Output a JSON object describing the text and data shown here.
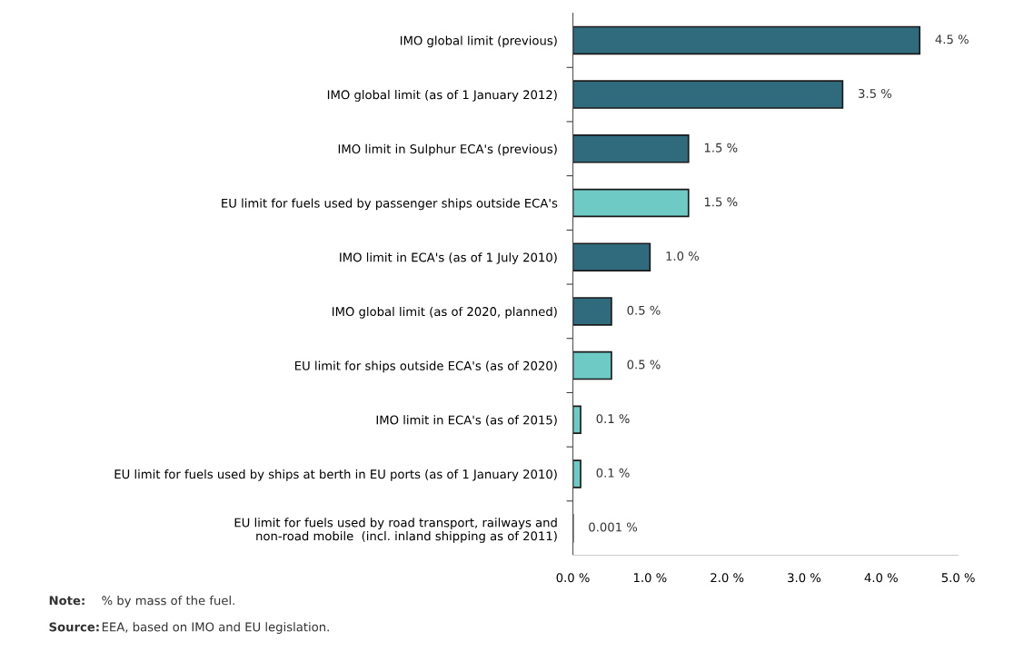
{
  "chart_data": {
    "type": "bar",
    "orientation": "horizontal",
    "categories": [
      "IMO global limit (previous)",
      "IMO global limit (as of 1 January 2012)",
      "IMO limit in Sulphur ECA's (previous)",
      "EU limit for fuels used by passenger ships outside ECA's",
      "IMO limit in ECA's (as of 1 July 2010)",
      "IMO global limit (as of 2020, planned)",
      "EU limit for ships outside ECA's (as of 2020)",
      "IMO limit in ECA's (as of 2015)",
      "EU limit for fuels used by ships at berth in EU ports (as of 1 January 2010)",
      "EU limit for fuels used by road transport, railways and\nnon-road mobile  (incl. inland shipping as of 2011)"
    ],
    "values": [
      4.5,
      3.5,
      1.5,
      1.5,
      1.0,
      0.5,
      0.5,
      0.1,
      0.1,
      0.001
    ],
    "colors": [
      "#2f6b7c",
      "#2f6b7c",
      "#2f6b7c",
      "#6ecac4",
      "#2f6b7c",
      "#2f6b7c",
      "#6ecac4",
      "#6ecac4",
      "#6ecac4",
      "#6ecac4"
    ],
    "value_labels": [
      "4.5 %",
      "3.5 %",
      "1.5 %",
      "1.5 %",
      "1.0 %",
      "0.5 %",
      "0.5 %",
      "0.1 %",
      "0.1 %",
      "0.001 %"
    ],
    "xlim": [
      0,
      5
    ],
    "xticks": [
      {
        "value": 0,
        "label": "0.0 %"
      },
      {
        "value": 1,
        "label": "1.0 %"
      },
      {
        "value": 2,
        "label": "2.0 %"
      },
      {
        "value": 3,
        "label": "3.0 %"
      },
      {
        "value": 4,
        "label": "4.0 %"
      },
      {
        "value": 5,
        "label": "5.0 %"
      }
    ],
    "grid": false,
    "annotations": [
      "Note:\t% by mass of the fuel.",
      "Source:\tEEA, based on IMO and EU legislation."
    ]
  }
}
